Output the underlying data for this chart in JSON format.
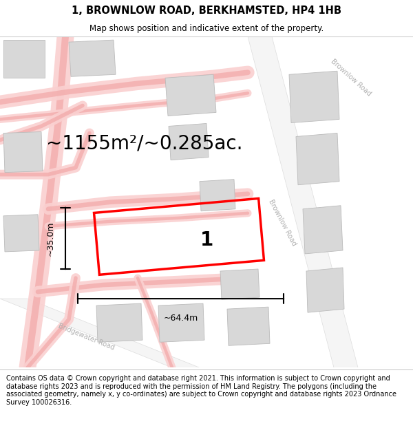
{
  "title": "1, BROWNLOW ROAD, BERKHAMSTED, HP4 1HB",
  "subtitle": "Map shows position and indicative extent of the property.",
  "area_label": "~1155m²/~0.285ac.",
  "property_number": "1",
  "dim_width": "~64.4m",
  "dim_height": "~35.0m",
  "footer": "Contains OS data © Crown copyright and database right 2021. This information is subject to Crown copyright and database rights 2023 and is reproduced with the permission of HM Land Registry. The polygons (including the associated geometry, namely x, y co-ordinates) are subject to Crown copyright and database rights 2023 Ordnance Survey 100026316.",
  "title_fontsize": 10.5,
  "subtitle_fontsize": 8.5,
  "area_fontsize": 20,
  "footer_fontsize": 7.0,
  "plot_color": "#ff0000",
  "road_pink": "#f0a0a0",
  "road_pink_light": "#fad0d0",
  "bldg_fill": "#d8d8d8",
  "bldg_edge": "#bbbbbb",
  "road_fill": "#f0f0f0",
  "road_edge": "#d0d0d0",
  "text_road": "#b0b0b0"
}
